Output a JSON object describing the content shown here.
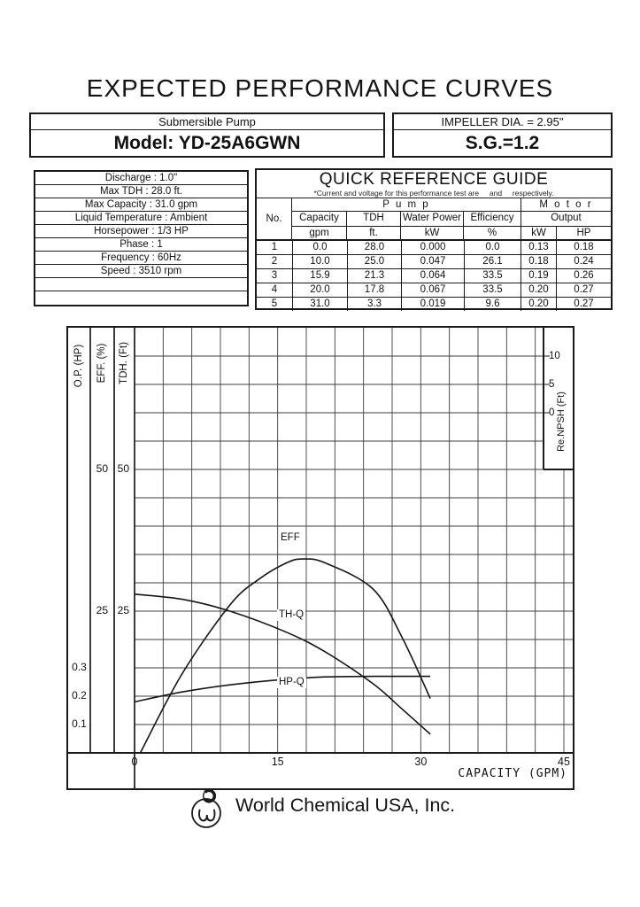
{
  "title": "EXPECTED PERFORMANCE CURVES",
  "header": {
    "pump_type": "Submersible  Pump",
    "model": "Model: YD-25A6GWN",
    "impeller": "IMPELLER DIA. = 2.95\"",
    "sg": "S.G.=1.2"
  },
  "specs": {
    "rows": [
      "Discharge : 1.0\"",
      "Max TDH  : 28.0 ft.",
      "Max Capacity : 31.0 gpm",
      "Liquid Temperature : Ambient",
      "Horsepower : 1/3 HP",
      "Phase : 1",
      "Frequency : 60Hz",
      "Speed : 3510 rpm",
      "",
      ""
    ]
  },
  "qrg": {
    "title": "QUICK REFERENCE GUIDE",
    "subtitle": "*Current and voltage for this performance test are     and     respectively.",
    "col_no": "No.",
    "group_pump": "P u m p",
    "group_motor": "M o t o r",
    "cols": [
      "Capacity",
      "TDH",
      "Water Power",
      "Efficiency"
    ],
    "output": "Output",
    "units": [
      "gpm",
      "ft.",
      "kW",
      "%",
      "kW",
      "HP"
    ],
    "rows": [
      [
        "1",
        "0.0",
        "28.0",
        "0.000",
        "0.0",
        "0.13",
        "0.18"
      ],
      [
        "2",
        "10.0",
        "25.0",
        "0.047",
        "26.1",
        "0.18",
        "0.24"
      ],
      [
        "3",
        "15.9",
        "21.3",
        "0.064",
        "33.5",
        "0.19",
        "0.26"
      ],
      [
        "4",
        "20.0",
        "17.8",
        "0.067",
        "33.5",
        "0.20",
        "0.27"
      ],
      [
        "5",
        "31.0",
        "3.3",
        "0.019",
        "9.6",
        "0.20",
        "0.27"
      ]
    ]
  },
  "chart_data": {
    "type": "line",
    "x_label": "CAPACITY  (GPM)",
    "x_ticks": [
      0,
      15,
      30,
      45
    ],
    "x_range": [
      0,
      45
    ],
    "grid": true,
    "axes": {
      "tdh": {
        "title": "TDH. (Ft)",
        "ticks": [
          50,
          25
        ],
        "range": [
          0,
          75
        ]
      },
      "eff": {
        "title": "EFF. (%)",
        "ticks": [
          50,
          25
        ],
        "range": [
          0,
          75
        ]
      },
      "op": {
        "title": "O.P. (HP)",
        "ticks": [
          0.3,
          0.2,
          0.1
        ],
        "range": [
          0,
          1.5
        ]
      },
      "npsh": {
        "title": "Re.NPSH  (Ft)",
        "ticks": [
          10,
          5,
          0
        ]
      }
    },
    "series": [
      {
        "name": "TH-Q",
        "axis": "tdh",
        "points": [
          [
            0,
            28
          ],
          [
            5,
            27.1
          ],
          [
            10,
            25
          ],
          [
            15.9,
            21.3
          ],
          [
            20,
            17.8
          ],
          [
            25,
            12.2
          ],
          [
            28,
            7.8
          ],
          [
            31,
            3.3
          ]
        ]
      },
      {
        "name": "EFF",
        "axis": "eff",
        "points": [
          [
            0.6,
            0
          ],
          [
            5,
            14
          ],
          [
            10,
            26.1
          ],
          [
            13,
            30.6
          ],
          [
            15.9,
            33.5
          ],
          [
            17.6,
            34.2
          ],
          [
            20,
            33.5
          ],
          [
            25,
            28.9
          ],
          [
            28,
            20.5
          ],
          [
            31,
            9.6
          ]
        ]
      },
      {
        "name": "HP-Q",
        "axis": "op",
        "points": [
          [
            0,
            0.18
          ],
          [
            5,
            0.215
          ],
          [
            10,
            0.24
          ],
          [
            15.9,
            0.26
          ],
          [
            20,
            0.268
          ],
          [
            25,
            0.27
          ],
          [
            31,
            0.27
          ]
        ]
      }
    ]
  },
  "footer": {
    "company": "World Chemical USA, Inc."
  }
}
